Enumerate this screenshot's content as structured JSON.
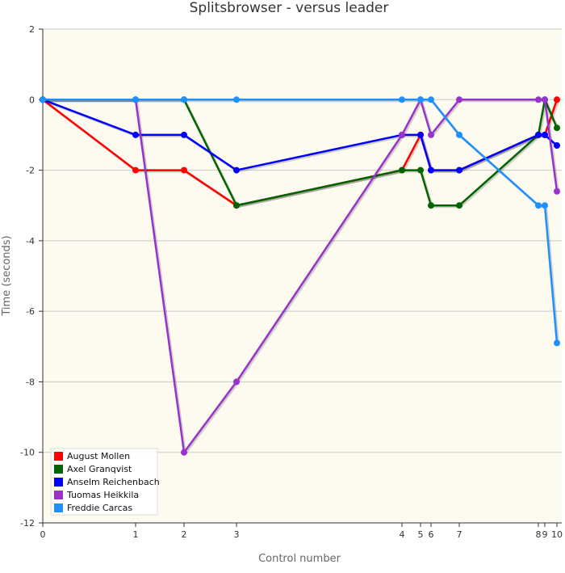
{
  "chart_data": {
    "type": "line",
    "title": "Splitsbrowser - versus leader",
    "xlabel": "Control number",
    "ylabel": "Time (seconds)",
    "ylim": [
      -12,
      2
    ],
    "yticks": [
      2,
      0,
      -2,
      -4,
      -6,
      -8,
      -10,
      -12
    ],
    "xticks": [
      {
        "x": 0,
        "label": "0"
      },
      {
        "x": 1,
        "label": "1"
      },
      {
        "x": 2,
        "label": "2"
      },
      {
        "x": 3,
        "label": "3"
      },
      {
        "x": 4,
        "label": "4"
      },
      {
        "x": 5,
        "label": "5"
      },
      {
        "x": 6,
        "label": "6"
      },
      {
        "x": 7,
        "label": "7"
      },
      {
        "x": 8,
        "label": "8"
      },
      {
        "x": 9,
        "label": "9"
      },
      {
        "x": 10,
        "label": "10"
      }
    ],
    "legend_position": "bottom-left",
    "grid": "horizontal",
    "background": "#fdfaf0",
    "series": [
      {
        "name": "August Mollen",
        "color": "#ff0000",
        "points": [
          [
            0,
            0
          ],
          [
            1,
            -2
          ],
          [
            2,
            -2
          ],
          [
            3,
            -3
          ],
          [
            4,
            -2
          ],
          [
            5,
            -1
          ],
          [
            6,
            -2
          ],
          [
            7,
            -2
          ],
          [
            8,
            -1
          ],
          [
            9,
            -1
          ],
          [
            10,
            0
          ]
        ]
      },
      {
        "name": "Axel Granqvist",
        "color": "#006400",
        "points": [
          [
            0,
            0
          ],
          [
            1,
            0
          ],
          [
            2,
            0
          ],
          [
            3,
            -3
          ],
          [
            4,
            -2
          ],
          [
            5,
            -2
          ],
          [
            6,
            -3
          ],
          [
            7,
            -3
          ],
          [
            8,
            -1
          ],
          [
            9,
            0
          ],
          [
            10,
            -0.8
          ]
        ]
      },
      {
        "name": "Anselm Reichenbach",
        "color": "#0000ff",
        "points": [
          [
            0,
            0
          ],
          [
            1,
            -1
          ],
          [
            2,
            -1
          ],
          [
            3,
            -2
          ],
          [
            4,
            -1
          ],
          [
            5,
            -1
          ],
          [
            6,
            -2
          ],
          [
            7,
            -2
          ],
          [
            8,
            -1
          ],
          [
            9,
            -1
          ],
          [
            10,
            -1.3
          ]
        ]
      },
      {
        "name": "Tuomas Heikkila",
        "color": "#9932cc",
        "points": [
          [
            0,
            0
          ],
          [
            1,
            0
          ],
          [
            2,
            -10
          ],
          [
            3,
            -8
          ],
          [
            4,
            -1
          ],
          [
            5,
            0
          ],
          [
            6,
            -1
          ],
          [
            7,
            0
          ],
          [
            8,
            0
          ],
          [
            9,
            0
          ],
          [
            10,
            -2.6
          ]
        ]
      },
      {
        "name": "Freddie Carcas",
        "color": "#1e90ff",
        "points": [
          [
            0,
            0
          ],
          [
            1,
            0
          ],
          [
            2,
            0
          ],
          [
            3,
            0
          ],
          [
            4,
            0
          ],
          [
            5,
            0
          ],
          [
            6,
            0
          ],
          [
            7,
            -1
          ],
          [
            8,
            -3
          ],
          [
            9,
            -3
          ],
          [
            10,
            -6.9
          ]
        ]
      }
    ]
  }
}
